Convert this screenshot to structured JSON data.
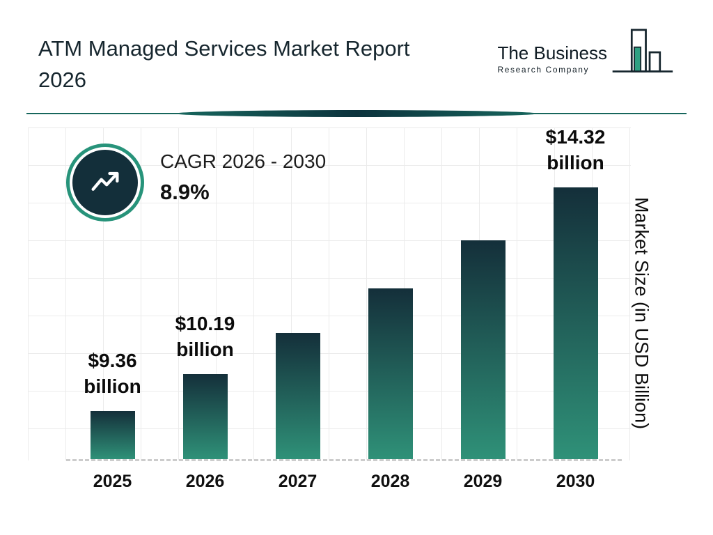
{
  "header": {
    "title": "ATM Managed Services Market Report 2026",
    "logo_line1": "The Business",
    "logo_line2": "Research Company"
  },
  "cagr": {
    "label": "CAGR 2026 - 2030",
    "value": "8.9%"
  },
  "chart_data": {
    "type": "bar",
    "title": "ATM Managed Services Market Report 2026",
    "categories": [
      "2025",
      "2026",
      "2027",
      "2028",
      "2029",
      "2030"
    ],
    "values": [
      9.36,
      10.19,
      11.1,
      12.08,
      13.15,
      14.32
    ],
    "labeled_values": {
      "2025": [
        "$9.36",
        "billion"
      ],
      "2026": [
        "$10.19",
        "billion"
      ],
      "2030": [
        "$14.32",
        "billion"
      ]
    },
    "values_note": "2027-2029 values estimated from bar heights and 8.9% CAGR; only 2025, 2026 and 2030 carry data labels",
    "ylabel": "Market Size (in USD Billion)",
    "xlabel": "",
    "ylim": [
      8.3,
      14.32
    ],
    "grid": true,
    "legend": "none",
    "bar_gradient": [
      "#142f3a",
      "#2f9178"
    ],
    "accent_teal": "#27937a",
    "dark_navy": "#132f3a"
  }
}
